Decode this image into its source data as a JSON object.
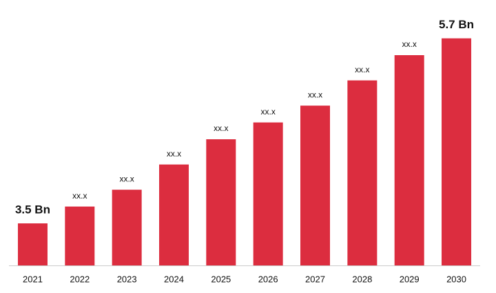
{
  "chart_data": {
    "type": "bar",
    "categories": [
      "2021",
      "2022",
      "2023",
      "2024",
      "2025",
      "2026",
      "2027",
      "2028",
      "2029",
      "2030"
    ],
    "values": [
      3.5,
      3.7,
      3.9,
      4.2,
      4.5,
      4.7,
      4.9,
      5.2,
      5.5,
      5.7
    ],
    "value_labels": [
      "3.5 Bn",
      "xx.x",
      "xx.x",
      "xx.x",
      "xx.x",
      "xx.x",
      "xx.x",
      "xx.x",
      "xx.x",
      "5.7 Bn"
    ],
    "color": "#dc2d3f",
    "ylim": [
      3,
      6
    ]
  }
}
